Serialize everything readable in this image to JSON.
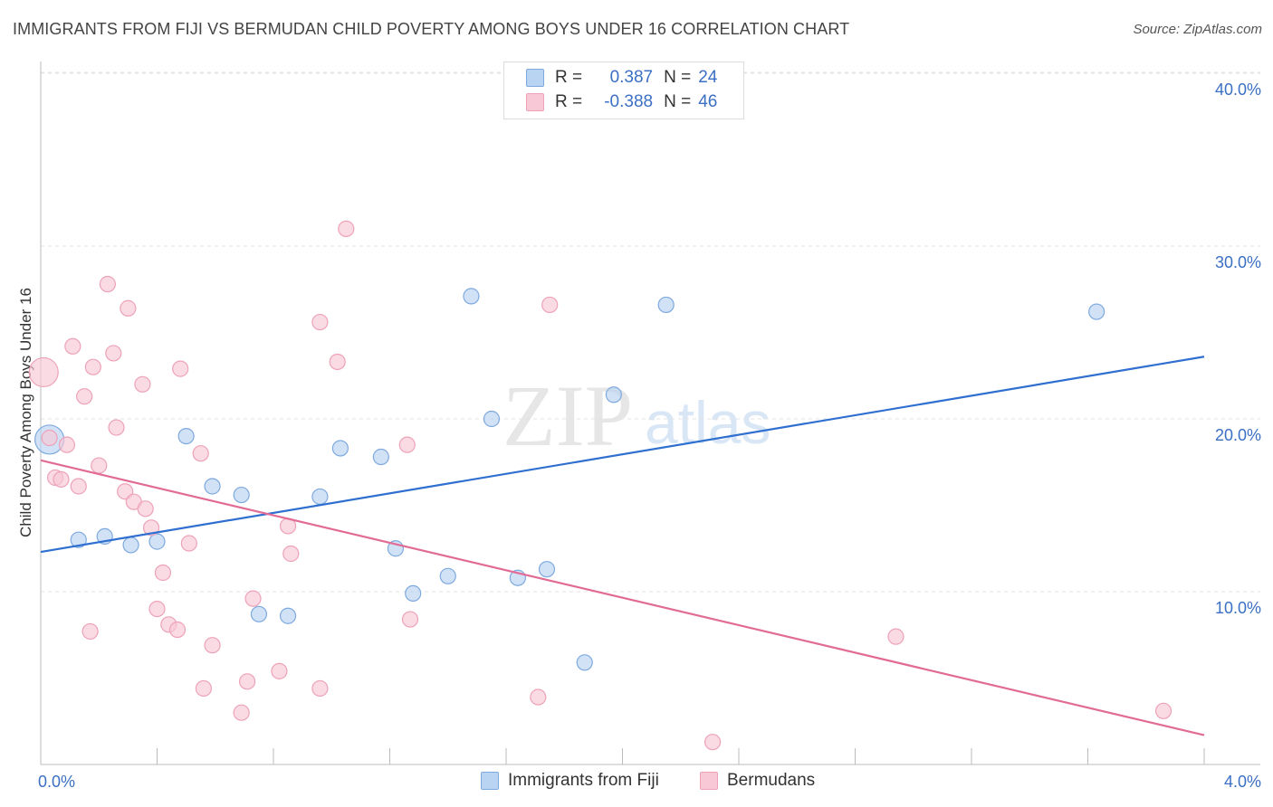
{
  "header": {
    "title": "IMMIGRANTS FROM FIJI VS BERMUDAN CHILD POVERTY AMONG BOYS UNDER 16 CORRELATION CHART",
    "source": "Source: ZipAtlas.com"
  },
  "watermark": {
    "zip": "ZIP",
    "atlas": "atlas"
  },
  "legend": {
    "rows": [
      {
        "r_label": "R =",
        "r_value": "0.387",
        "n_label": "N =",
        "n_value": "24"
      },
      {
        "r_label": "R =",
        "r_value": "-0.388",
        "n_label": "N =",
        "n_value": "46"
      }
    ]
  },
  "colors": {
    "fiji_fill": "#b9d3f2",
    "fiji_stroke": "#7ea9de",
    "fiji_line": "#2f6fcf",
    "bermuda_fill": "#f8c8d6",
    "bermuda_stroke": "#eda2b8",
    "bermuda_line": "#e26b96",
    "tick_label": "#3b6fc4"
  },
  "chart_data": {
    "type": "scatter",
    "title": "IMMIGRANTS FROM FIJI VS BERMUDAN CHILD POVERTY AMONG BOYS UNDER 16 CORRELATION CHART",
    "xlabel": "",
    "ylabel": "Child Poverty Among Boys Under 16",
    "xlim": [
      0,
      4.0
    ],
    "ylim": [
      0,
      42
    ],
    "x_tick_labels": [
      "0.0%",
      "4.0%"
    ],
    "x_tick_values": [
      0,
      4.0
    ],
    "y_tick_labels": [
      "10.0%",
      "20.0%",
      "30.0%",
      "40.0%"
    ],
    "y_tick_values": [
      10,
      20,
      30,
      40
    ],
    "grid": true,
    "legend_position": "top-center",
    "series": [
      {
        "name": "Immigrants from Fiji",
        "r": 0.387,
        "n": 24,
        "trend": {
          "x": [
            0,
            4.0
          ],
          "y": [
            12.3,
            23.6
          ]
        },
        "points": [
          {
            "x": 0.03,
            "y": 18.8,
            "big": true
          },
          {
            "x": 0.13,
            "y": 13.0
          },
          {
            "x": 0.22,
            "y": 13.2
          },
          {
            "x": 0.31,
            "y": 12.7
          },
          {
            "x": 0.4,
            "y": 12.9
          },
          {
            "x": 0.5,
            "y": 19.0
          },
          {
            "x": 0.59,
            "y": 16.1
          },
          {
            "x": 0.69,
            "y": 15.6
          },
          {
            "x": 0.75,
            "y": 8.7
          },
          {
            "x": 0.85,
            "y": 8.6
          },
          {
            "x": 0.96,
            "y": 15.5
          },
          {
            "x": 1.03,
            "y": 18.3
          },
          {
            "x": 1.17,
            "y": 17.8
          },
          {
            "x": 1.22,
            "y": 12.5
          },
          {
            "x": 1.28,
            "y": 9.9
          },
          {
            "x": 1.4,
            "y": 10.9
          },
          {
            "x": 1.48,
            "y": 27.1
          },
          {
            "x": 1.55,
            "y": 20.0
          },
          {
            "x": 1.64,
            "y": 10.8
          },
          {
            "x": 1.74,
            "y": 11.3
          },
          {
            "x": 1.87,
            "y": 5.9
          },
          {
            "x": 1.97,
            "y": 21.4
          },
          {
            "x": 2.15,
            "y": 26.6
          },
          {
            "x": 3.63,
            "y": 26.2
          }
        ]
      },
      {
        "name": "Bermudans",
        "r": -0.388,
        "n": 46,
        "trend": {
          "x": [
            0,
            4.0
          ],
          "y": [
            17.6,
            1.7
          ]
        },
        "points": [
          {
            "x": 0.01,
            "y": 22.7,
            "big": true
          },
          {
            "x": 0.03,
            "y": 18.9
          },
          {
            "x": 0.05,
            "y": 16.6
          },
          {
            "x": 0.07,
            "y": 16.5
          },
          {
            "x": 0.09,
            "y": 18.5
          },
          {
            "x": 0.11,
            "y": 24.2
          },
          {
            "x": 0.13,
            "y": 16.1
          },
          {
            "x": 0.15,
            "y": 21.3
          },
          {
            "x": 0.17,
            "y": 7.7
          },
          {
            "x": 0.18,
            "y": 23.0
          },
          {
            "x": 0.2,
            "y": 17.3
          },
          {
            "x": 0.23,
            "y": 27.8
          },
          {
            "x": 0.25,
            "y": 23.8
          },
          {
            "x": 0.26,
            "y": 19.5
          },
          {
            "x": 0.3,
            "y": 26.4
          },
          {
            "x": 0.29,
            "y": 15.8
          },
          {
            "x": 0.32,
            "y": 15.2
          },
          {
            "x": 0.35,
            "y": 22.0
          },
          {
            "x": 0.36,
            "y": 14.8
          },
          {
            "x": 0.38,
            "y": 13.7
          },
          {
            "x": 0.4,
            "y": 9.0
          },
          {
            "x": 0.42,
            "y": 11.1
          },
          {
            "x": 0.44,
            "y": 8.1
          },
          {
            "x": 0.47,
            "y": 7.8
          },
          {
            "x": 0.48,
            "y": 22.9
          },
          {
            "x": 0.51,
            "y": 12.8
          },
          {
            "x": 0.55,
            "y": 18.0
          },
          {
            "x": 0.56,
            "y": 4.4
          },
          {
            "x": 0.59,
            "y": 6.9
          },
          {
            "x": 0.69,
            "y": 3.0
          },
          {
            "x": 0.71,
            "y": 4.8
          },
          {
            "x": 0.73,
            "y": 9.6
          },
          {
            "x": 0.82,
            "y": 5.4
          },
          {
            "x": 0.85,
            "y": 13.8
          },
          {
            "x": 0.86,
            "y": 12.2
          },
          {
            "x": 0.96,
            "y": 4.4
          },
          {
            "x": 0.96,
            "y": 25.6
          },
          {
            "x": 1.02,
            "y": 23.3
          },
          {
            "x": 1.05,
            "y": 31.0
          },
          {
            "x": 1.26,
            "y": 18.5
          },
          {
            "x": 1.27,
            "y": 8.4
          },
          {
            "x": 1.71,
            "y": 3.9
          },
          {
            "x": 1.75,
            "y": 26.6
          },
          {
            "x": 2.31,
            "y": 1.3
          },
          {
            "x": 2.94,
            "y": 7.4
          },
          {
            "x": 3.86,
            "y": 3.1
          }
        ]
      }
    ]
  }
}
